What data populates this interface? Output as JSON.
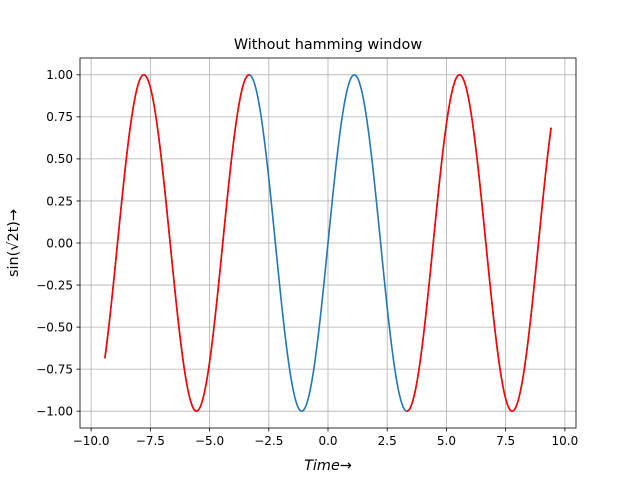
{
  "chart_data": {
    "type": "line",
    "title": "Without hamming window",
    "xlabel": "Time→",
    "ylabel": "sin(√2t)→",
    "xlim": [
      -10.47,
      10.47
    ],
    "ylim": [
      -1.1,
      1.1
    ],
    "grid": true,
    "x_ticks": [
      -10.0,
      -7.5,
      -5.0,
      -2.5,
      0.0,
      2.5,
      5.0,
      7.5,
      10.0
    ],
    "x_tick_labels": [
      "−10.0",
      "−7.5",
      "−5.0",
      "−2.5",
      "0.0",
      "2.5",
      "5.0",
      "7.5",
      "10.0"
    ],
    "y_ticks": [
      -1.0,
      -0.75,
      -0.5,
      -0.25,
      0.0,
      0.25,
      0.5,
      0.75,
      1.0
    ],
    "y_tick_labels": [
      "−1.00",
      "−0.75",
      "−0.50",
      "−0.25",
      "0.00",
      "0.25",
      "0.50",
      "0.75",
      "1.00"
    ],
    "function": "sin(sqrt(2)*t)",
    "series": [
      {
        "color": "#1f77b4",
        "x_range": [
          -9.42,
          9.42
        ],
        "samples": 600
      },
      {
        "color": "#ff0000",
        "x_range": [
          -9.42,
          -3.32
        ],
        "samples": 220
      },
      {
        "color": "#ff0000",
        "x_range": [
          3.32,
          9.42
        ],
        "samples": 220
      }
    ]
  }
}
